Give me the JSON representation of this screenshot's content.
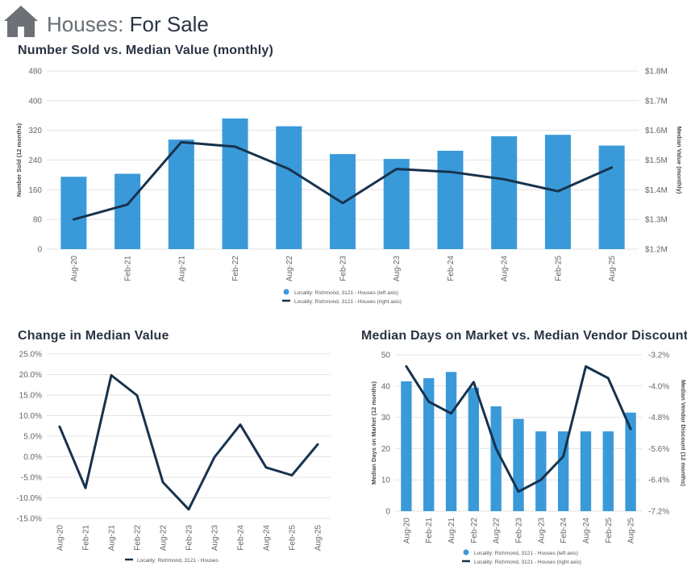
{
  "header": {
    "title_part1": "Houses:",
    "title_part2": "For Sale",
    "icon": "house-icon"
  },
  "colors": {
    "bar": "#3a9ad9",
    "line": "#17324d",
    "grid": "#e3e3e3",
    "text": "#666666"
  },
  "chart_data": [
    {
      "id": "sold",
      "type": "bar+line",
      "title": "Number Sold vs. Median Value (monthly)",
      "categories": [
        "Aug-20",
        "Feb-21",
        "Aug-21",
        "Feb-22",
        "Aug-22",
        "Feb-23",
        "Aug-23",
        "Feb-24",
        "Aug-24",
        "Feb-25",
        "Aug-25"
      ],
      "series": [
        {
          "name": "Locality: Richmond, 3121 - Houses (left axis)",
          "type": "bar",
          "axis": "left",
          "values": [
            195,
            203,
            295,
            352,
            331,
            256,
            243,
            265,
            304,
            308,
            279
          ]
        },
        {
          "name": "Locality: Richmond, 3121 - Houses (right axis)",
          "type": "line",
          "axis": "right",
          "values": [
            1.3,
            1.35,
            1.56,
            1.545,
            1.47,
            1.355,
            1.47,
            1.46,
            1.435,
            1.395,
            1.475
          ]
        }
      ],
      "ylabel": "Number Sold (12 months)",
      "y2label": "Median Value (monthly)",
      "ylim": [
        0,
        480
      ],
      "y2lim": [
        1.2,
        1.8
      ],
      "yticks": [
        "0",
        "80",
        "160",
        "240",
        "320",
        "400",
        "480"
      ],
      "y2ticks": [
        "$1.2M",
        "$1.3M",
        "$1.4M",
        "$1.5M",
        "$1.6M",
        "$1.7M",
        "$1.8M"
      ],
      "grid": true,
      "legend": "bottom-center"
    },
    {
      "id": "change",
      "type": "line",
      "title": "Change in Median Value",
      "categories": [
        "Aug-20",
        "Feb-21",
        "Aug-21",
        "Feb-22",
        "Aug-22",
        "Feb-23",
        "Aug-23",
        "Feb-24",
        "Aug-24",
        "Feb-25",
        "Aug-25"
      ],
      "series": [
        {
          "name": "Locality: Richmond, 3121 - Houses",
          "type": "line",
          "values": [
            7.3,
            -7.6,
            19.8,
            14.9,
            -6.2,
            -12.8,
            -0.1,
            7.8,
            -2.6,
            -4.5,
            3.0
          ]
        }
      ],
      "ylim": [
        -15,
        25
      ],
      "yticks": [
        "-15.0%",
        "-10.0%",
        "-5.0%",
        "0.0%",
        "5.0%",
        "10.0%",
        "15.0%",
        "20.0%",
        "25.0%"
      ],
      "grid": true,
      "legend": "bottom-center"
    },
    {
      "id": "dom",
      "type": "bar+line",
      "title": "Median Days on Market vs. Median Vendor Discount",
      "categories": [
        "Aug-20",
        "Feb-21",
        "Aug-21",
        "Feb-22",
        "Aug-22",
        "Feb-23",
        "Aug-23",
        "Feb-24",
        "Aug-24",
        "Feb-25",
        "Aug-25"
      ],
      "series": [
        {
          "name": "Locality: Richmond, 3121 - Houses (left axis)",
          "type": "bar",
          "axis": "left",
          "values": [
            41.5,
            42.5,
            44.5,
            39.5,
            33.5,
            29.5,
            25.5,
            25.5,
            25.5,
            25.5,
            31.5
          ]
        },
        {
          "name": "Locality: Richmond, 3121 - Houses (right axis)",
          "type": "line",
          "axis": "right",
          "values": [
            -3.5,
            -4.4,
            -4.7,
            -3.9,
            -5.6,
            -6.7,
            -6.4,
            -5.8,
            -3.5,
            -3.8,
            -5.1
          ]
        }
      ],
      "ylabel": "Median Days on Market (12 months)",
      "y2label": "Median Vendor Discount (12 months)",
      "ylim": [
        0,
        50
      ],
      "y2lim": [
        -7.2,
        -3.2
      ],
      "yticks": [
        "0",
        "10",
        "20",
        "30",
        "40",
        "50"
      ],
      "y2ticks": [
        "-7.2%",
        "-6.4%",
        "-5.6%",
        "-4.8%",
        "-4.0%",
        "-3.2%"
      ],
      "grid": true,
      "legend": "bottom-center"
    }
  ]
}
